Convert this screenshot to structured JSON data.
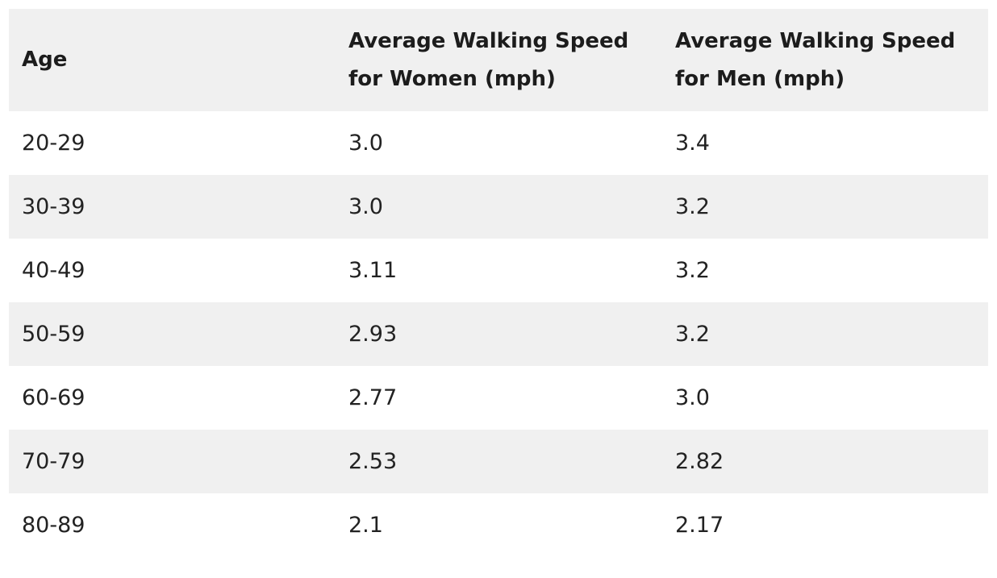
{
  "table": {
    "headers": [
      "Age",
      "Average Walking Speed for Women (mph)",
      "Average Walking Speed for Men (mph)"
    ],
    "rows": [
      [
        "20-29",
        "3.0",
        "3.4"
      ],
      [
        "30-39",
        "3.0",
        "3.2"
      ],
      [
        "40-49",
        "3.11",
        "3.2"
      ],
      [
        "50-59",
        "2.93",
        "3.2"
      ],
      [
        "60-69",
        "2.77",
        "3.0"
      ],
      [
        "70-79",
        "2.53",
        "2.82"
      ],
      [
        "80-89",
        "2.1",
        "2.17"
      ]
    ]
  },
  "colors": {
    "header_background": "#f0f0f0",
    "stripe_background": "#f0f0f0",
    "row_background": "#ffffff",
    "text": "#1f1f1f"
  }
}
